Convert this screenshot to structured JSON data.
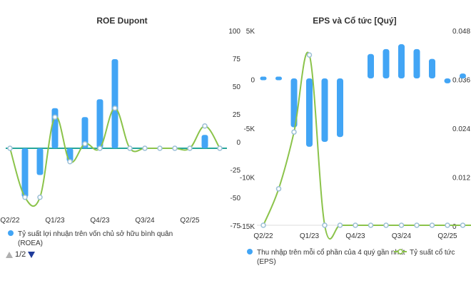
{
  "colors": {
    "bar": "#42a5f5",
    "line": "#8bc34a",
    "teal": "#26a69a",
    "grid": "#dddddd"
  },
  "pager": {
    "label": "1/2"
  },
  "chart_data": [
    {
      "type": "bar",
      "title": "ROE Dupont",
      "categories": [
        "Q2/22",
        "Q3/22",
        "Q4/22",
        "Q1/23",
        "Q2/23",
        "Q3/23",
        "Q4/23",
        "Q1/24",
        "Q2/24",
        "Q3/24",
        "Q4/24",
        "Q1/25",
        "Q2/25",
        "Q3/25",
        "Q4/25"
      ],
      "tick_labels": [
        "Q2/22",
        "Q1/23",
        "Q4/23",
        "Q3/24",
        "Q2/25"
      ],
      "bar_values": [
        0,
        -55,
        -30,
        45,
        -15,
        35,
        55,
        100,
        0,
        0,
        0,
        0,
        0,
        15,
        0
      ],
      "line_values": [
        0,
        -55,
        -55,
        35,
        -15,
        5,
        0,
        45,
        0,
        0,
        0,
        0,
        0,
        25,
        0
      ],
      "legend": {
        "series": "Tỷ suất lợi nhuận trên vốn chủ sở hữu bình quân (ROEA)"
      }
    },
    {
      "type": "bar",
      "title": "EPS và Cổ tức [Quý]",
      "categories": [
        "Q2/22",
        "Q3/22",
        "Q4/22",
        "Q1/23",
        "Q2/23",
        "Q3/23",
        "Q4/23",
        "Q1/24",
        "Q2/24",
        "Q3/24",
        "Q4/24",
        "Q1/25",
        "Q2/25",
        "Q3/25",
        "Q4/25"
      ],
      "tick_labels": [
        "Q2/22",
        "Q1/23",
        "Q4/23",
        "Q3/24",
        "Q2/25"
      ],
      "left_ticks": [
        "100",
        "75",
        "50",
        "25",
        "0",
        "-25",
        "-50",
        "-75"
      ],
      "mid_ticks": [
        "5K",
        "0",
        "-5K",
        "-10K",
        "-15K"
      ],
      "right_ticks": [
        "0.048",
        "0.036",
        "0.024",
        "0.012",
        "0"
      ],
      "eps_values": [
        0,
        0,
        -5000,
        -7000,
        -6500,
        -6000,
        0,
        2500,
        3000,
        3500,
        3000,
        2000,
        -500,
        500,
        0
      ],
      "dividend_values": [
        0,
        0.009,
        0.023,
        0.042,
        0.0,
        0,
        0,
        0,
        0,
        0,
        0,
        0,
        0,
        0,
        0
      ],
      "legend": {
        "eps": "Thu nhập trên mỗi cổ phần của 4 quý gần nhất (EPS)",
        "dividend": "Tỷ suất cổ tức"
      }
    }
  ]
}
